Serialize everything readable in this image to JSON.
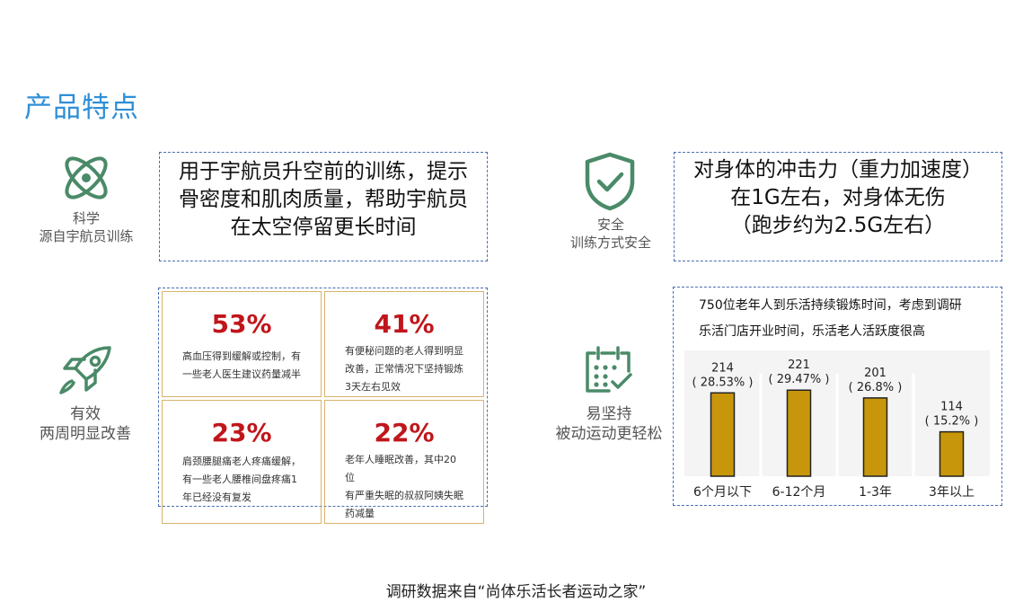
{
  "page": {
    "title": "产品特点",
    "footer": "调研数据来自“尚体乐活长者运动之家”"
  },
  "features": {
    "science": {
      "icon": "atom-icon",
      "label_line1": "科学",
      "label_line2": "源自宇航员训练",
      "desc_lines": [
        "用于宇航员升空前的训练，提示",
        "骨密度和肌肉质量，帮助宇航员",
        "在太空停留更长时间"
      ]
    },
    "safety": {
      "icon": "shield-check-icon",
      "label_line1": "安全",
      "label_line2": "训练方式安全",
      "desc_lines": [
        "对身体的冲击力（重力加速度）",
        "在1G左右，对身体无伤",
        "（跑步约为2.5G左右）"
      ]
    },
    "effective": {
      "icon": "rocket-icon",
      "label_line1": "有效",
      "label_line2": "两周明显改善",
      "stats": [
        {
          "percent": "53%",
          "lines": [
            "高血压得到缓解或控制，有",
            "一些老人医生建议药量减半"
          ]
        },
        {
          "percent": "41%",
          "lines": [
            "有便秘问题的老人得到明显",
            "改善，正常情况下坚持锻炼",
            "3天左右见效"
          ]
        },
        {
          "percent": "23%",
          "lines": [
            "肩颈腰腿痛老人疼痛缓解，",
            "有一些老人腰椎间盘疼痛1",
            "年已经没有复发"
          ]
        },
        {
          "percent": "22%",
          "lines": [
            "老年人睡眠改善，其中20位",
            "有严重失眠的叔叔阿姨失眠",
            "药减量"
          ]
        }
      ]
    },
    "easy": {
      "icon": "calendar-check-icon",
      "label_line1": "易坚持",
      "label_line2": "被动运动更轻松"
    }
  },
  "chart_data": {
    "type": "bar",
    "title_lines": [
      "750位老年人到乐活持续锻炼时间，考虑到调研",
      "乐活门店开业时间，乐活老人活跃度很高"
    ],
    "categories": [
      "6个月以下",
      "6-12个月",
      "1-3年",
      "3年以上"
    ],
    "values": [
      214,
      221,
      201,
      114
    ],
    "value_labels": [
      "214",
      "221",
      "201",
      "114"
    ],
    "percent_labels": [
      "( 28.53% )",
      "( 29.47% )",
      "( 26.8% )",
      "( 15.2% )"
    ],
    "ylim": [
      0,
      240
    ],
    "bar_color": "#c8960a",
    "grid": false
  },
  "colors": {
    "title": "#2f8fd6",
    "icon_green": "#4a8a68",
    "percent_red": "#c0161b",
    "dashed_border": "#4a6fb3",
    "cell_border": "#d9b46b"
  }
}
